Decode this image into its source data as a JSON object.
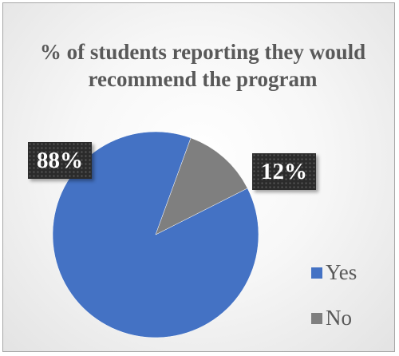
{
  "chart_data": {
    "type": "pie",
    "title": "% of students reporting they would recommend the program",
    "categories": [
      "Yes",
      "No"
    ],
    "values": [
      88,
      12
    ],
    "data_labels": [
      "88%",
      "12%"
    ],
    "colors": [
      "#4472c4",
      "#7f7f7f"
    ],
    "legend": [
      "Yes",
      "No"
    ],
    "legend_position": "right"
  }
}
